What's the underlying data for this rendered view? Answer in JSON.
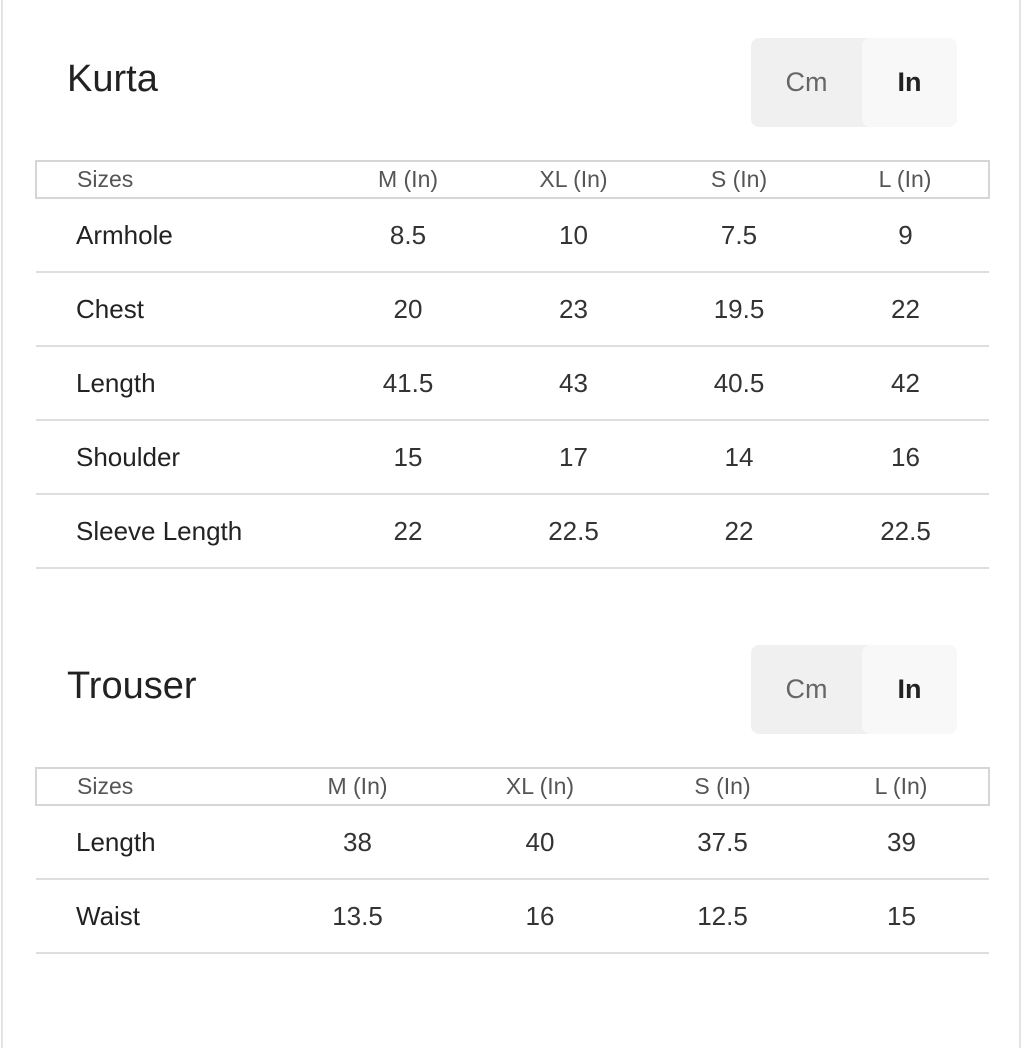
{
  "unit_toggle": {
    "cm_label": "Cm",
    "in_label": "In",
    "selected": "In"
  },
  "tables": [
    {
      "title": "Kurta",
      "headers": [
        "Sizes",
        "M (In)",
        "XL (In)",
        "S (In)",
        "L (In)"
      ],
      "rows": [
        [
          "Armhole",
          "8.5",
          "10",
          "7.5",
          "9"
        ],
        [
          "Chest",
          "20",
          "23",
          "19.5",
          "22"
        ],
        [
          "Length",
          "41.5",
          "43",
          "40.5",
          "42"
        ],
        [
          "Shoulder",
          "15",
          "17",
          "14",
          "16"
        ],
        [
          "Sleeve Length",
          "22",
          "22.5",
          "22",
          "22.5"
        ]
      ]
    },
    {
      "title": "Trouser",
      "headers": [
        "Sizes",
        "M (In)",
        "XL (In)",
        "S (In)",
        "L (In)"
      ],
      "rows": [
        [
          "Length",
          "38",
          "40",
          "37.5",
          "39"
        ],
        [
          "Waist",
          "13.5",
          "16",
          "12.5",
          "15"
        ]
      ]
    }
  ]
}
